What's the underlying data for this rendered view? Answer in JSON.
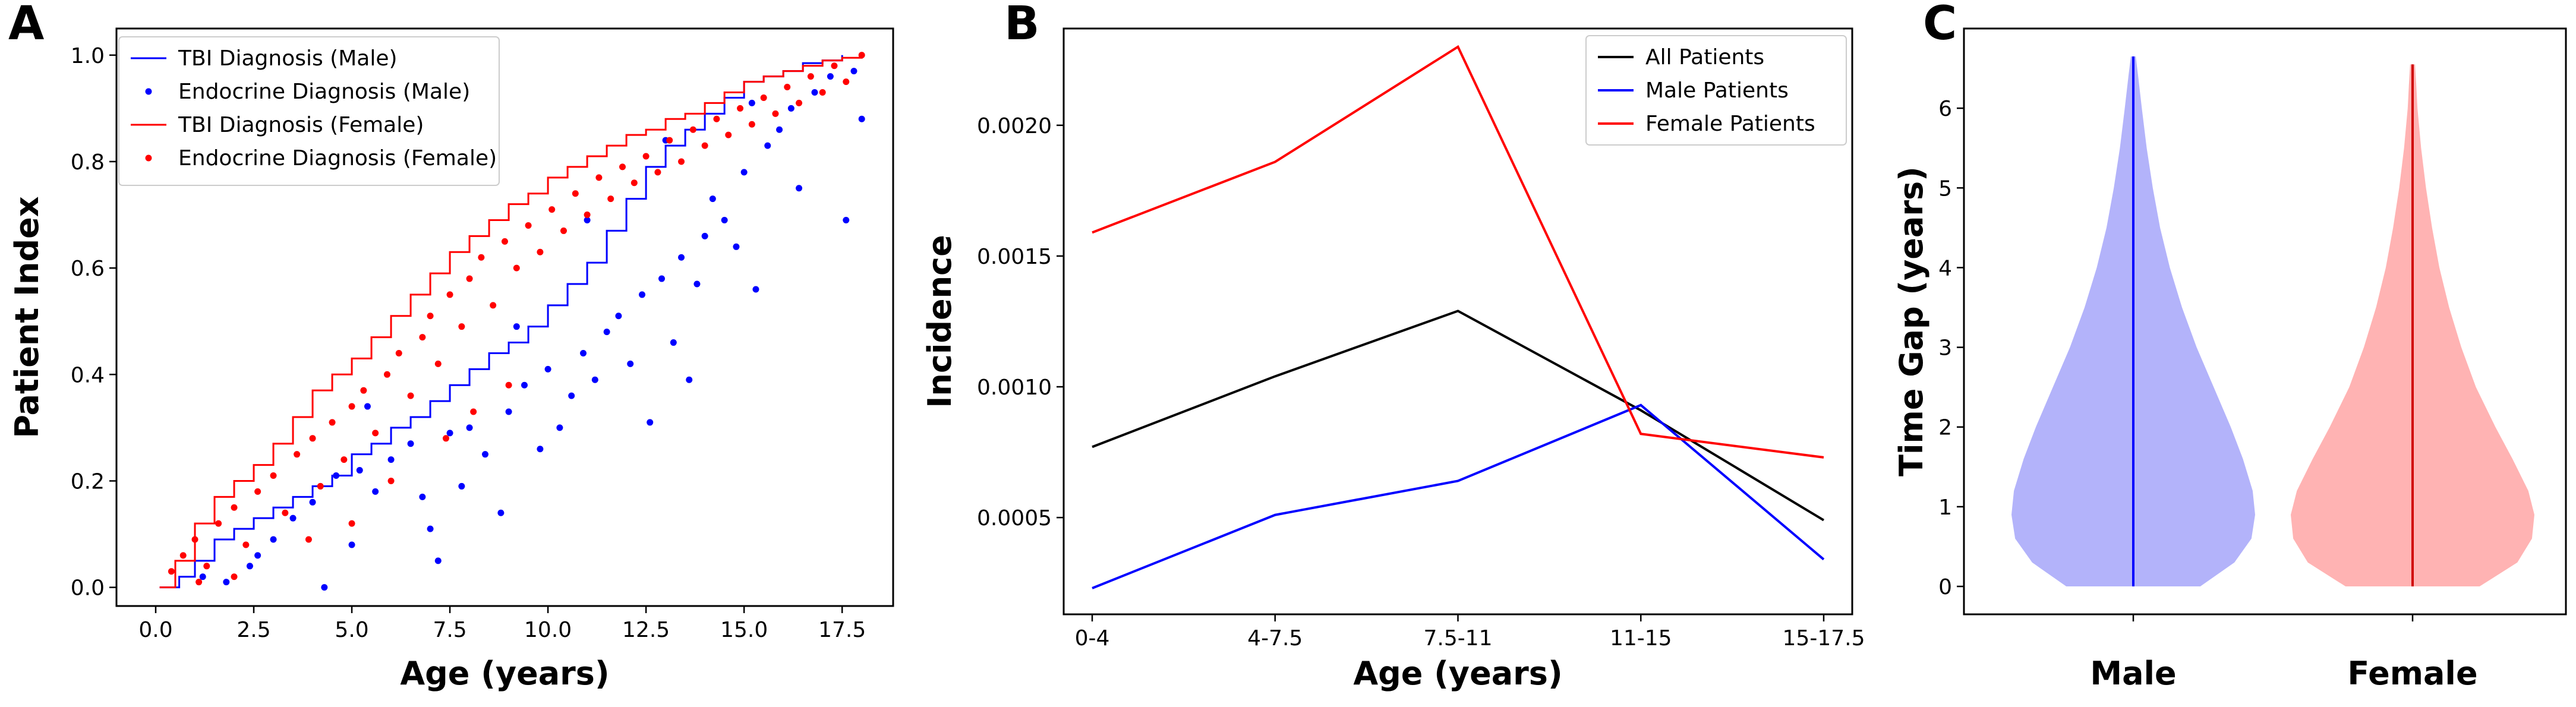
{
  "panels": {
    "a": {
      "letter": "A"
    },
    "b": {
      "letter": "B"
    },
    "c": {
      "letter": "C"
    }
  },
  "chart_data": [
    {
      "type": "scatter",
      "xlabel": "Age (years)",
      "ylabel": "Patient Index",
      "xlim": [
        -1.0,
        18.8
      ],
      "ylim": [
        -0.035,
        1.05
      ],
      "xticks": [
        "0.0",
        "2.5",
        "5.0",
        "7.5",
        "10.0",
        "12.5",
        "15.0",
        "17.5"
      ],
      "xtick_values": [
        0,
        2.5,
        5,
        7.5,
        10,
        12.5,
        15,
        17.5
      ],
      "yticks": [
        "0.0",
        "0.2",
        "0.4",
        "0.6",
        "0.8",
        "1.0"
      ],
      "ytick_values": [
        0,
        0.2,
        0.4,
        0.6,
        0.8,
        1.0
      ],
      "legend_position": "top-left",
      "series": [
        {
          "name": "TBI Diagnosis (Male)",
          "kind": "line",
          "color": "#0000ff",
          "points": [
            [
              0.1,
              0.0
            ],
            [
              0.6,
              0.02
            ],
            [
              1.0,
              0.05
            ],
            [
              1.5,
              0.09
            ],
            [
              2.0,
              0.11
            ],
            [
              2.5,
              0.13
            ],
            [
              3.0,
              0.15
            ],
            [
              3.5,
              0.17
            ],
            [
              4.0,
              0.19
            ],
            [
              4.5,
              0.21
            ],
            [
              5.0,
              0.25
            ],
            [
              5.5,
              0.27
            ],
            [
              6.0,
              0.3
            ],
            [
              6.5,
              0.32
            ],
            [
              7.0,
              0.35
            ],
            [
              7.5,
              0.38
            ],
            [
              8.0,
              0.41
            ],
            [
              8.5,
              0.44
            ],
            [
              9.0,
              0.46
            ],
            [
              9.5,
              0.49
            ],
            [
              10.0,
              0.53
            ],
            [
              10.5,
              0.57
            ],
            [
              11.0,
              0.61
            ],
            [
              11.5,
              0.67
            ],
            [
              12.0,
              0.73
            ],
            [
              12.5,
              0.79
            ],
            [
              13.0,
              0.83
            ],
            [
              13.5,
              0.86
            ],
            [
              14.0,
              0.89
            ],
            [
              14.5,
              0.92
            ],
            [
              15.0,
              0.95
            ],
            [
              15.5,
              0.96
            ],
            [
              16.0,
              0.97
            ],
            [
              16.5,
              0.985
            ],
            [
              17.0,
              0.99
            ],
            [
              17.5,
              1.0
            ]
          ]
        },
        {
          "name": "Endocrine Diagnosis (Male)",
          "kind": "dots",
          "color": "#0000ff",
          "points": [
            [
              1.2,
              0.02
            ],
            [
              1.8,
              0.01
            ],
            [
              2.4,
              0.04
            ],
            [
              2.6,
              0.06
            ],
            [
              3.0,
              0.09
            ],
            [
              3.5,
              0.13
            ],
            [
              4.0,
              0.16
            ],
            [
              4.3,
              0.0
            ],
            [
              4.6,
              0.21
            ],
            [
              5.0,
              0.08
            ],
            [
              5.2,
              0.22
            ],
            [
              5.6,
              0.18
            ],
            [
              6.0,
              0.24
            ],
            [
              6.5,
              0.27
            ],
            [
              7.0,
              0.11
            ],
            [
              7.2,
              0.05
            ],
            [
              7.5,
              0.29
            ],
            [
              7.8,
              0.19
            ],
            [
              8.0,
              0.3
            ],
            [
              8.4,
              0.25
            ],
            [
              8.8,
              0.14
            ],
            [
              9.0,
              0.33
            ],
            [
              9.4,
              0.38
            ],
            [
              9.8,
              0.26
            ],
            [
              10.0,
              0.41
            ],
            [
              10.3,
              0.3
            ],
            [
              10.6,
              0.36
            ],
            [
              10.9,
              0.44
            ],
            [
              11.2,
              0.39
            ],
            [
              11.5,
              0.48
            ],
            [
              11.8,
              0.51
            ],
            [
              12.1,
              0.42
            ],
            [
              12.4,
              0.55
            ],
            [
              12.6,
              0.31
            ],
            [
              12.9,
              0.58
            ],
            [
              13.2,
              0.46
            ],
            [
              13.4,
              0.62
            ],
            [
              13.6,
              0.39
            ],
            [
              13.8,
              0.57
            ],
            [
              14.0,
              0.66
            ],
            [
              14.2,
              0.73
            ],
            [
              14.5,
              0.69
            ],
            [
              14.8,
              0.64
            ],
            [
              15.0,
              0.78
            ],
            [
              15.3,
              0.56
            ],
            [
              15.6,
              0.83
            ],
            [
              15.9,
              0.86
            ],
            [
              16.2,
              0.9
            ],
            [
              16.4,
              0.75
            ],
            [
              16.8,
              0.93
            ],
            [
              17.2,
              0.96
            ],
            [
              17.6,
              0.69
            ],
            [
              18.0,
              0.88
            ],
            [
              17.8,
              0.97
            ],
            [
              15.2,
              0.91
            ],
            [
              13.0,
              0.84
            ],
            [
              11.0,
              0.69
            ],
            [
              9.2,
              0.49
            ],
            [
              6.8,
              0.17
            ],
            [
              5.4,
              0.34
            ]
          ]
        },
        {
          "name": "TBI Diagnosis (Female)",
          "kind": "line",
          "color": "#ff0000",
          "points": [
            [
              0.1,
              0.0
            ],
            [
              0.5,
              0.05
            ],
            [
              1.0,
              0.12
            ],
            [
              1.5,
              0.17
            ],
            [
              2.0,
              0.2
            ],
            [
              2.5,
              0.23
            ],
            [
              3.0,
              0.27
            ],
            [
              3.5,
              0.32
            ],
            [
              4.0,
              0.37
            ],
            [
              4.5,
              0.4
            ],
            [
              5.0,
              0.43
            ],
            [
              5.5,
              0.47
            ],
            [
              6.0,
              0.51
            ],
            [
              6.5,
              0.55
            ],
            [
              7.0,
              0.59
            ],
            [
              7.5,
              0.63
            ],
            [
              8.0,
              0.66
            ],
            [
              8.5,
              0.69
            ],
            [
              9.0,
              0.72
            ],
            [
              9.5,
              0.74
            ],
            [
              10.0,
              0.77
            ],
            [
              10.5,
              0.79
            ],
            [
              11.0,
              0.81
            ],
            [
              11.5,
              0.83
            ],
            [
              12.0,
              0.85
            ],
            [
              12.5,
              0.86
            ],
            [
              13.0,
              0.88
            ],
            [
              13.5,
              0.89
            ],
            [
              14.0,
              0.91
            ],
            [
              14.5,
              0.93
            ],
            [
              15.0,
              0.95
            ],
            [
              15.5,
              0.96
            ],
            [
              16.0,
              0.97
            ],
            [
              16.5,
              0.98
            ],
            [
              17.0,
              0.99
            ],
            [
              17.5,
              0.995
            ],
            [
              18.0,
              1.0
            ]
          ]
        },
        {
          "name": "Endocrine Diagnosis (Female)",
          "kind": "dots",
          "color": "#ff0000",
          "points": [
            [
              0.4,
              0.03
            ],
            [
              0.7,
              0.06
            ],
            [
              1.0,
              0.09
            ],
            [
              1.3,
              0.04
            ],
            [
              1.6,
              0.12
            ],
            [
              2.0,
              0.15
            ],
            [
              2.3,
              0.08
            ],
            [
              2.6,
              0.18
            ],
            [
              3.0,
              0.21
            ],
            [
              3.3,
              0.14
            ],
            [
              3.6,
              0.25
            ],
            [
              4.0,
              0.28
            ],
            [
              4.2,
              0.19
            ],
            [
              4.5,
              0.31
            ],
            [
              4.8,
              0.24
            ],
            [
              5.0,
              0.34
            ],
            [
              5.3,
              0.37
            ],
            [
              5.6,
              0.29
            ],
            [
              5.9,
              0.4
            ],
            [
              6.2,
              0.44
            ],
            [
              6.5,
              0.36
            ],
            [
              6.8,
              0.47
            ],
            [
              7.0,
              0.51
            ],
            [
              7.2,
              0.42
            ],
            [
              7.5,
              0.55
            ],
            [
              7.8,
              0.49
            ],
            [
              8.0,
              0.58
            ],
            [
              8.3,
              0.62
            ],
            [
              8.6,
              0.53
            ],
            [
              8.9,
              0.65
            ],
            [
              9.2,
              0.6
            ],
            [
              9.5,
              0.68
            ],
            [
              9.8,
              0.63
            ],
            [
              10.1,
              0.71
            ],
            [
              10.4,
              0.67
            ],
            [
              10.7,
              0.74
            ],
            [
              11.0,
              0.7
            ],
            [
              11.3,
              0.77
            ],
            [
              11.6,
              0.73
            ],
            [
              11.9,
              0.79
            ],
            [
              12.2,
              0.76
            ],
            [
              12.5,
              0.81
            ],
            [
              12.8,
              0.78
            ],
            [
              13.1,
              0.84
            ],
            [
              13.4,
              0.8
            ],
            [
              13.7,
              0.86
            ],
            [
              14.0,
              0.83
            ],
            [
              14.3,
              0.88
            ],
            [
              14.6,
              0.85
            ],
            [
              14.9,
              0.9
            ],
            [
              15.2,
              0.87
            ],
            [
              15.5,
              0.92
            ],
            [
              15.8,
              0.89
            ],
            [
              16.1,
              0.94
            ],
            [
              16.4,
              0.91
            ],
            [
              16.7,
              0.96
            ],
            [
              17.0,
              0.93
            ],
            [
              17.3,
              0.98
            ],
            [
              17.6,
              0.95
            ],
            [
              18.0,
              1.0
            ],
            [
              6.0,
              0.2
            ],
            [
              5.0,
              0.12
            ],
            [
              3.9,
              0.09
            ],
            [
              8.1,
              0.33
            ],
            [
              9.0,
              0.38
            ],
            [
              7.4,
              0.28
            ],
            [
              2.0,
              0.02
            ],
            [
              1.1,
              0.01
            ]
          ]
        }
      ]
    },
    {
      "type": "line",
      "xlabel": "Age (years)",
      "ylabel": "Incidence",
      "categories": [
        "0-4",
        "4-7.5",
        "7.5-11",
        "11-15",
        "15-17.5"
      ],
      "ylim": [
        0.00013,
        0.00237
      ],
      "yticks": [
        "0.0005",
        "0.0010",
        "0.0015",
        "0.0020"
      ],
      "ytick_values": [
        0.0005,
        0.001,
        0.0015,
        0.002
      ],
      "legend_position": "top-right",
      "series": [
        {
          "name": "All Patients",
          "color": "#000000",
          "values": [
            0.00077,
            0.00104,
            0.00129,
            0.00091,
            0.00049
          ]
        },
        {
          "name": "Male Patients",
          "color": "#0000ff",
          "values": [
            0.00023,
            0.00051,
            0.00064,
            0.00093,
            0.00034
          ]
        },
        {
          "name": "Female Patients",
          "color": "#ff0000",
          "values": [
            0.00159,
            0.00186,
            0.0023,
            0.00082,
            0.00073
          ]
        }
      ]
    },
    {
      "type": "violin",
      "ylabel": "Time Gap (years)",
      "categories": [
        "Male",
        "Female"
      ],
      "ylim": [
        -0.35,
        7.0
      ],
      "yticks": [
        "0",
        "1",
        "2",
        "3",
        "4",
        "5",
        "6"
      ],
      "ytick_values": [
        0,
        1,
        2,
        3,
        4,
        5,
        6
      ],
      "series": [
        {
          "name": "Male",
          "fill": "#b3b3fa",
          "line": "#0000ff",
          "min": 0.0,
          "max": 6.65,
          "profile": [
            [
              0.0,
              0.55
            ],
            [
              0.3,
              0.83
            ],
            [
              0.6,
              0.97
            ],
            [
              0.9,
              1.0
            ],
            [
              1.2,
              0.98
            ],
            [
              1.6,
              0.9
            ],
            [
              2.0,
              0.8
            ],
            [
              2.5,
              0.66
            ],
            [
              3.0,
              0.52
            ],
            [
              3.5,
              0.4
            ],
            [
              4.0,
              0.3
            ],
            [
              4.5,
              0.22
            ],
            [
              5.0,
              0.16
            ],
            [
              5.5,
              0.11
            ],
            [
              6.0,
              0.07
            ],
            [
              6.4,
              0.04
            ],
            [
              6.65,
              0.02
            ]
          ]
        },
        {
          "name": "Female",
          "fill": "#ffb3b3",
          "line": "#d00000",
          "min": 0.0,
          "max": 6.55,
          "profile": [
            [
              0.0,
              0.55
            ],
            [
              0.3,
              0.86
            ],
            [
              0.6,
              0.98
            ],
            [
              0.9,
              1.0
            ],
            [
              1.2,
              0.95
            ],
            [
              1.6,
              0.82
            ],
            [
              2.0,
              0.68
            ],
            [
              2.5,
              0.52
            ],
            [
              3.0,
              0.4
            ],
            [
              3.5,
              0.3
            ],
            [
              4.0,
              0.22
            ],
            [
              4.5,
              0.16
            ],
            [
              5.0,
              0.11
            ],
            [
              5.5,
              0.07
            ],
            [
              6.0,
              0.04
            ],
            [
              6.3,
              0.03
            ],
            [
              6.55,
              0.02
            ]
          ]
        }
      ]
    }
  ]
}
